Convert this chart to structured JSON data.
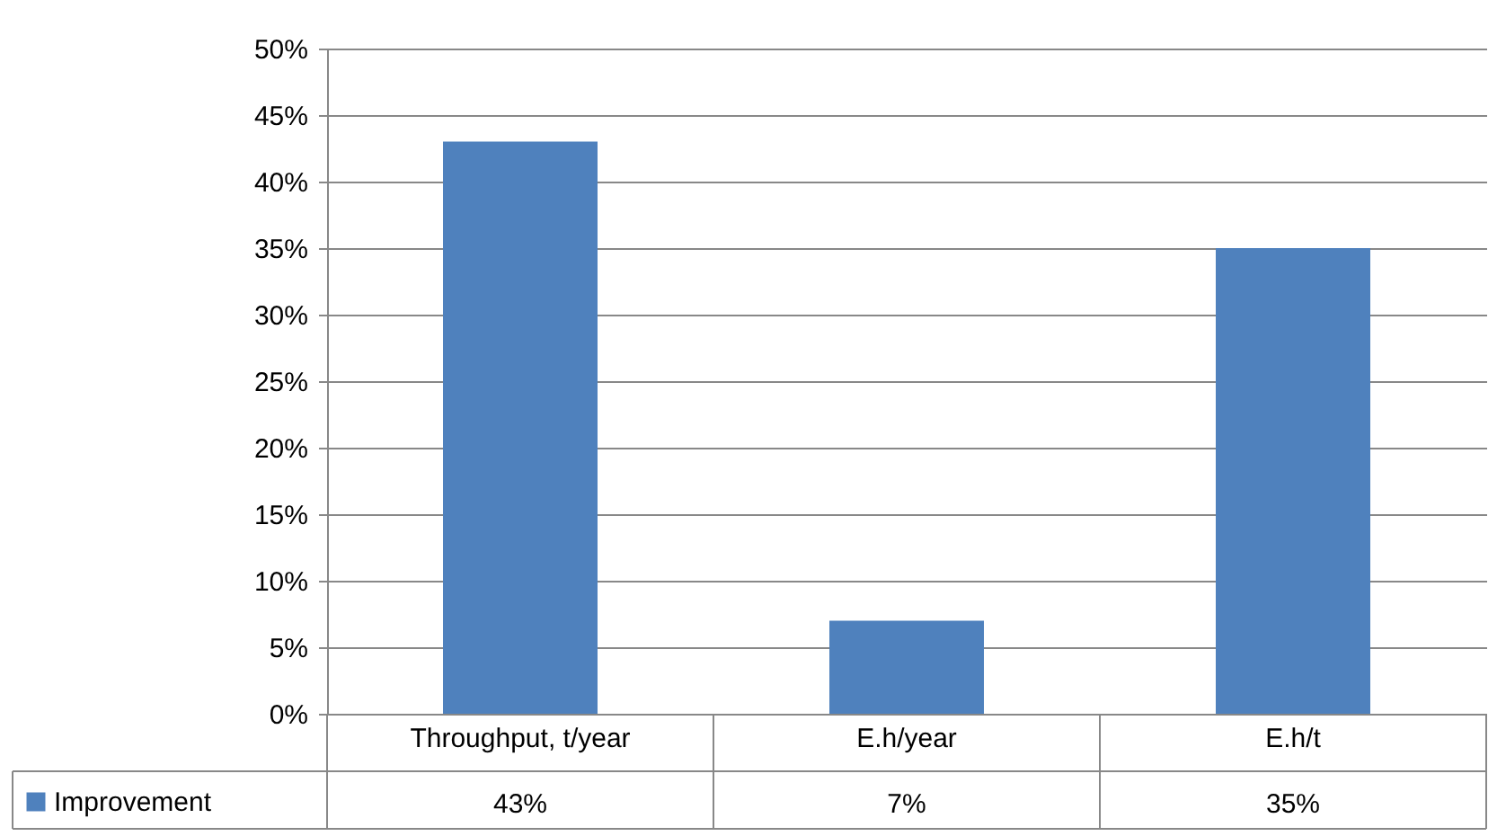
{
  "chart_data": {
    "type": "bar",
    "categories": [
      "Throughput, t/year",
      "E.h/year",
      "E.h/t"
    ],
    "series": [
      {
        "name": "Improvement",
        "color": "#4f81bd",
        "values": [
          43,
          7,
          35
        ],
        "value_labels": [
          "43%",
          "7%",
          "35%"
        ]
      }
    ],
    "ylim": [
      0,
      50
    ],
    "yticks": [
      {
        "value": 0,
        "label": "0%"
      },
      {
        "value": 5,
        "label": "5%"
      },
      {
        "value": 10,
        "label": "10%"
      },
      {
        "value": 15,
        "label": "15%"
      },
      {
        "value": 20,
        "label": "20%"
      },
      {
        "value": 25,
        "label": "25%"
      },
      {
        "value": 30,
        "label": "30%"
      },
      {
        "value": 35,
        "label": "35%"
      },
      {
        "value": 40,
        "label": "40%"
      },
      {
        "value": 45,
        "label": "45%"
      },
      {
        "value": 50,
        "label": "50%"
      }
    ],
    "grid": "y",
    "legend": "bottom left"
  }
}
